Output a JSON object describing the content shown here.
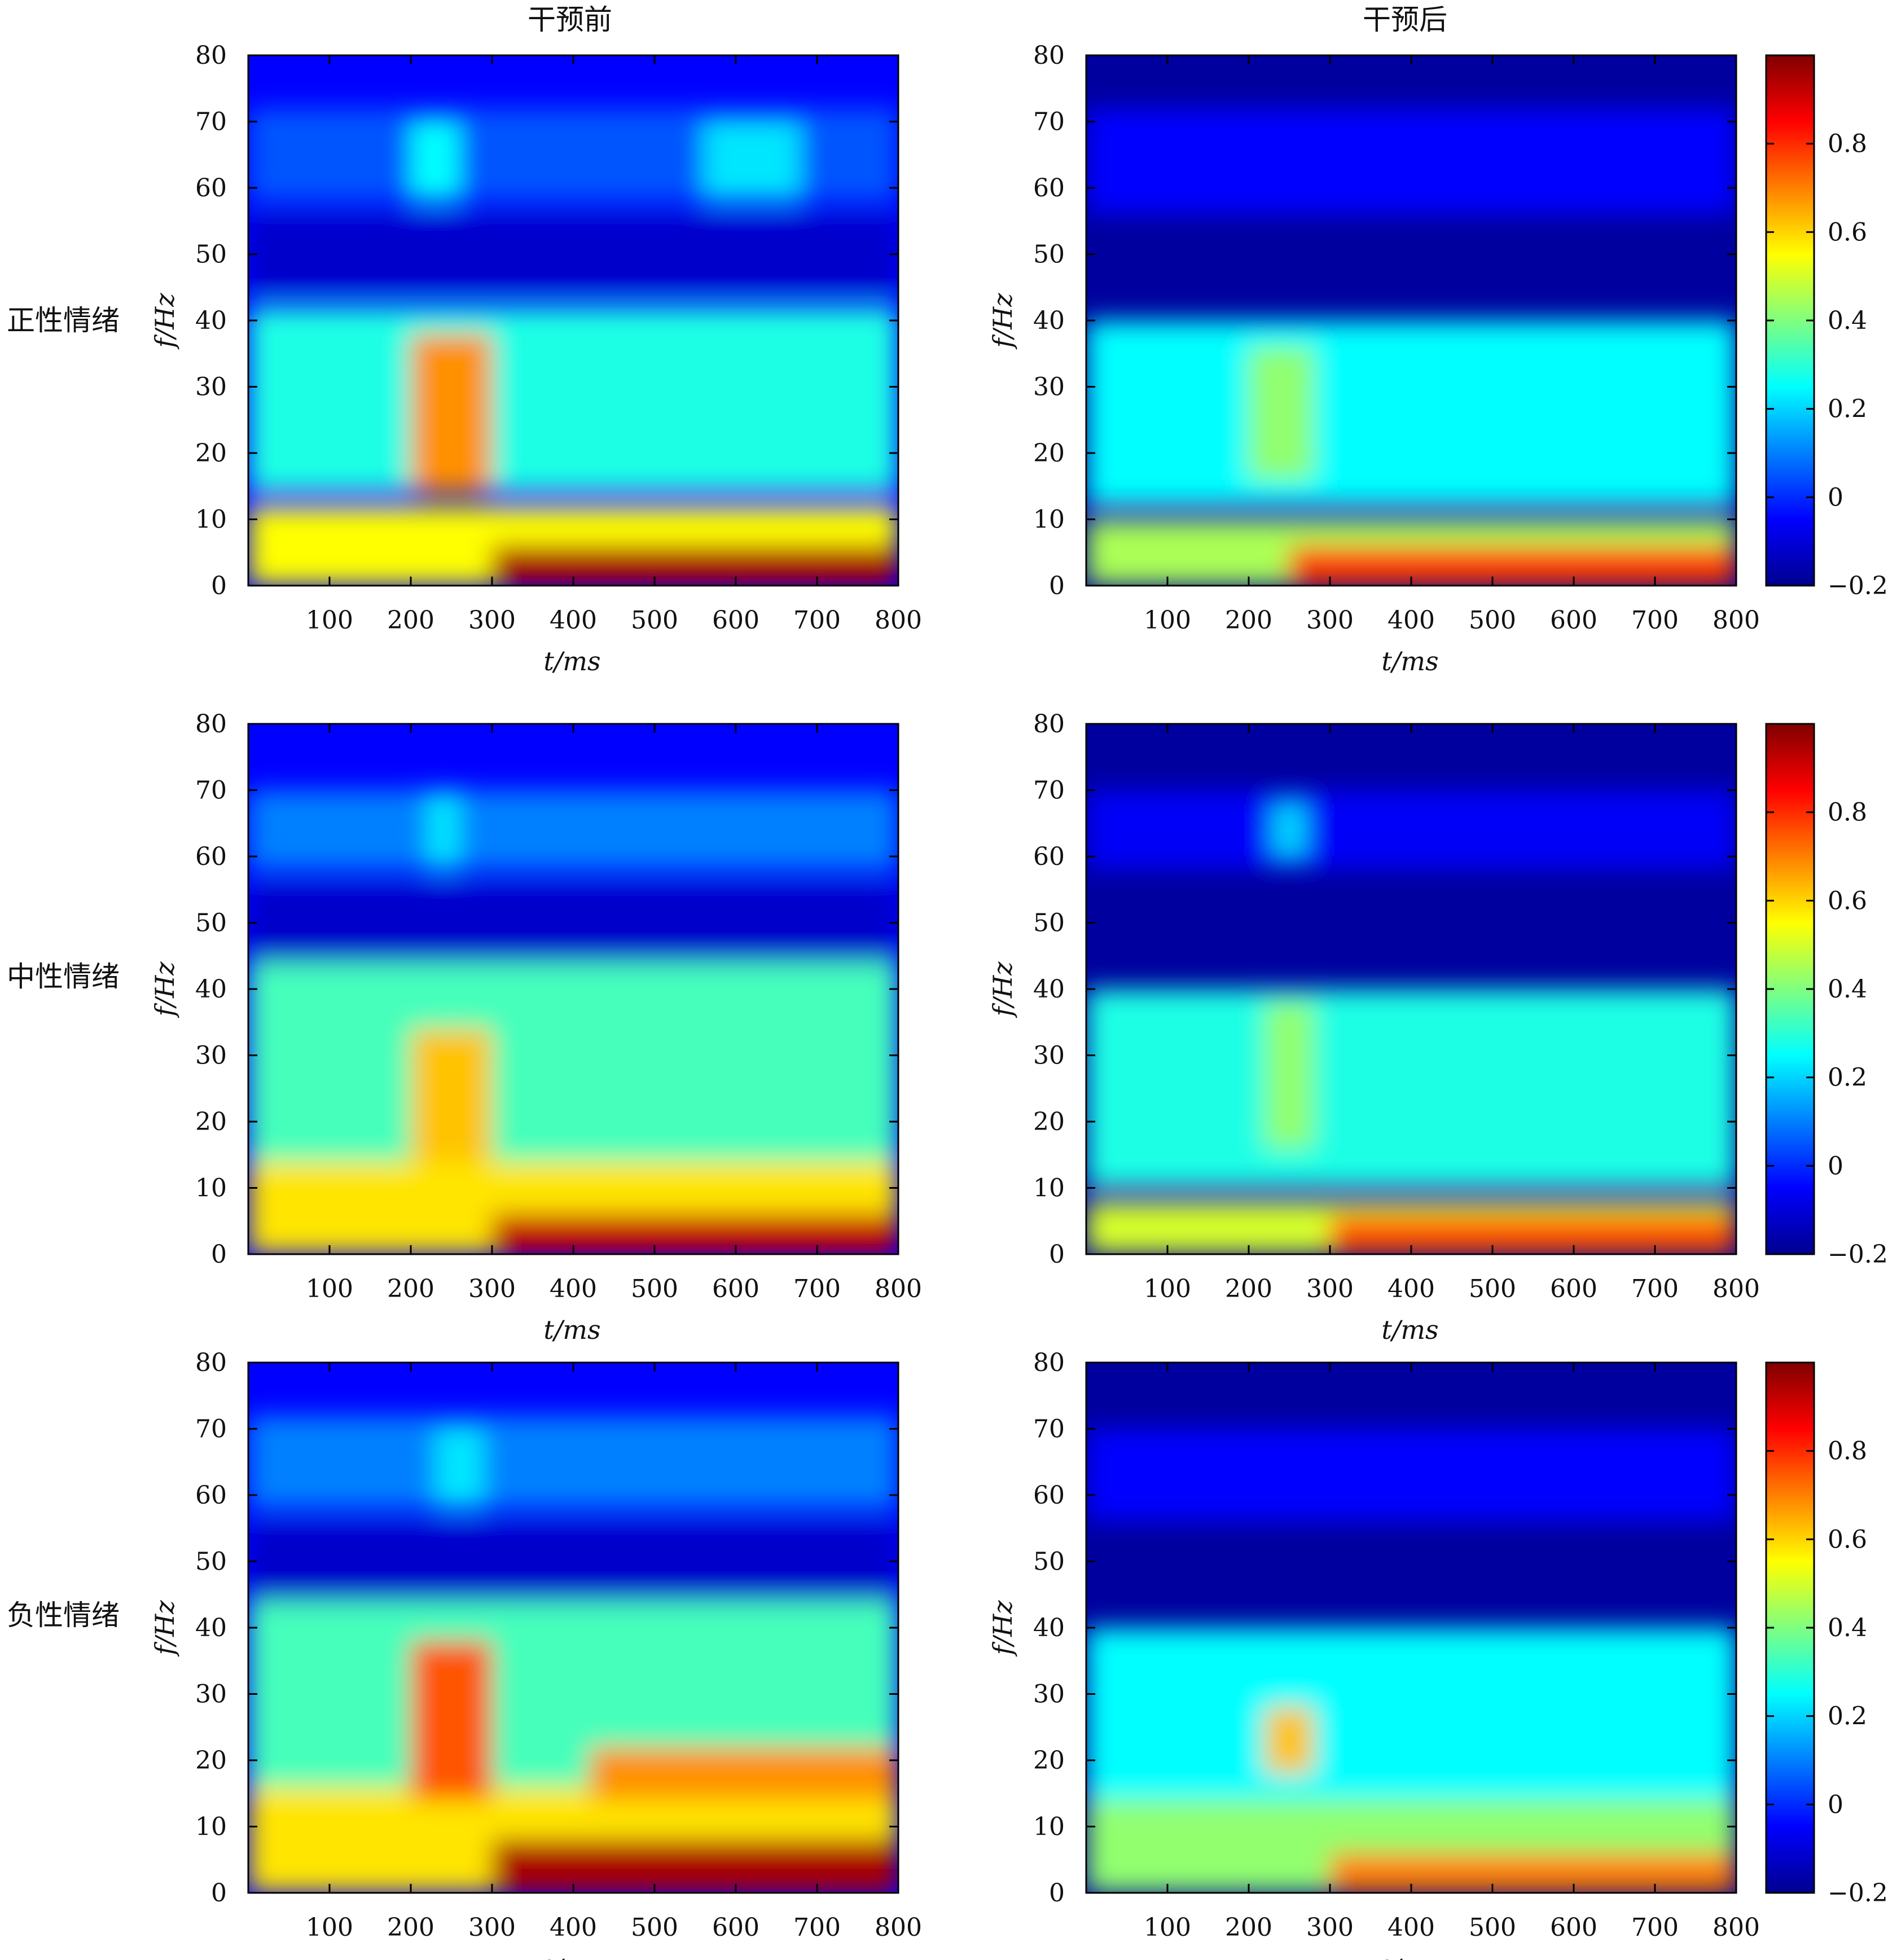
{
  "column_titles": [
    "干预前",
    "干预后"
  ],
  "row_labels": [
    "正性情绪",
    "中性情绪",
    "负性情绪"
  ],
  "chart_data": {
    "type": "heatmap",
    "title": "",
    "xlabel": "t/ms",
    "ylabel": "f/Hz",
    "x_ticks": [
      100,
      200,
      300,
      400,
      500,
      600,
      700,
      800
    ],
    "y_ticks": [
      0,
      10,
      20,
      30,
      40,
      50,
      60,
      70,
      80
    ],
    "xlim": [
      0,
      800
    ],
    "ylim": [
      0,
      80
    ],
    "colorbar": {
      "ticks": [
        -0.2,
        0,
        0.2,
        0.4,
        0.6,
        0.8
      ],
      "tick_labels": [
        "−0.2",
        "0",
        "0.2",
        "0.4",
        "0.6",
        "0.8"
      ],
      "range": [
        -0.2,
        1.0
      ],
      "colormap": "jet",
      "stops": [
        "#00008f",
        "#0000ff",
        "#00ffff",
        "#ffff00",
        "#ff0000",
        "#800000"
      ]
    },
    "panels": [
      {
        "row": "正性情绪",
        "column": "干预前",
        "background": -0.05,
        "regions": [
          {
            "t": [
              0,
              800
            ],
            "f": [
              14,
              42
            ],
            "value": 0.28
          },
          {
            "t": [
              0,
              800
            ],
            "f": [
              44,
              56
            ],
            "value": -0.12
          },
          {
            "t": [
              0,
              800
            ],
            "f": [
              58,
              72
            ],
            "value": 0.05
          },
          {
            "t": [
              0,
              800
            ],
            "f": [
              0,
              12
            ],
            "value": 0.55
          },
          {
            "t": [
              300,
              800
            ],
            "f": [
              0,
              6
            ],
            "value": 0.95
          },
          {
            "t": [
              200,
              300
            ],
            "f": [
              14,
              38
            ],
            "value": 0.68
          },
          {
            "t": [
              200,
              260
            ],
            "f": [
              58,
              70
            ],
            "value": 0.25
          },
          {
            "t": [
              560,
              680
            ],
            "f": [
              58,
              70
            ],
            "value": 0.22
          }
        ]
      },
      {
        "row": "正性情绪",
        "column": "干预后",
        "background": -0.18,
        "regions": [
          {
            "t": [
              0,
              800
            ],
            "f": [
              12,
              40
            ],
            "value": 0.25
          },
          {
            "t": [
              0,
              800
            ],
            "f": [
              56,
              72
            ],
            "value": -0.05
          },
          {
            "t": [
              0,
              800
            ],
            "f": [
              0,
              10
            ],
            "value": 0.45
          },
          {
            "t": [
              250,
              800
            ],
            "f": [
              0,
              6
            ],
            "value": 0.78
          },
          {
            "t": [
              200,
              280
            ],
            "f": [
              16,
              36
            ],
            "value": 0.42
          }
        ]
      },
      {
        "row": "中性情绪",
        "column": "干预前",
        "background": -0.05,
        "regions": [
          {
            "t": [
              0,
              800
            ],
            "f": [
              14,
              44
            ],
            "value": 0.33
          },
          {
            "t": [
              0,
              800
            ],
            "f": [
              44,
              56
            ],
            "value": -0.12
          },
          {
            "t": [
              0,
              800
            ],
            "f": [
              58,
              70
            ],
            "value": 0.1
          },
          {
            "t": [
              0,
              800
            ],
            "f": [
              0,
              14
            ],
            "value": 0.58
          },
          {
            "t": [
              300,
              800
            ],
            "f": [
              0,
              6
            ],
            "value": 0.92
          },
          {
            "t": [
              200,
              300
            ],
            "f": [
              14,
              34
            ],
            "value": 0.62
          },
          {
            "t": [
              220,
              260
            ],
            "f": [
              58,
              70
            ],
            "value": 0.22
          }
        ]
      },
      {
        "row": "中性情绪",
        "column": "干预后",
        "background": -0.18,
        "regions": [
          {
            "t": [
              0,
              800
            ],
            "f": [
              10,
              40
            ],
            "value": 0.28
          },
          {
            "t": [
              0,
              800
            ],
            "f": [
              58,
              70
            ],
            "value": -0.06
          },
          {
            "t": [
              0,
              800
            ],
            "f": [
              0,
              8
            ],
            "value": 0.5
          },
          {
            "t": [
              300,
              800
            ],
            "f": [
              0,
              6
            ],
            "value": 0.75
          },
          {
            "t": [
              220,
              280
            ],
            "f": [
              16,
              38
            ],
            "value": 0.42
          },
          {
            "t": [
              230,
              270
            ],
            "f": [
              60,
              68
            ],
            "value": 0.2
          }
        ]
      },
      {
        "row": "负性情绪",
        "column": "干预前",
        "background": -0.05,
        "regions": [
          {
            "t": [
              0,
              800
            ],
            "f": [
              14,
              44
            ],
            "value": 0.33
          },
          {
            "t": [
              0,
              800
            ],
            "f": [
              44,
              56
            ],
            "value": -0.12
          },
          {
            "t": [
              0,
              800
            ],
            "f": [
              58,
              72
            ],
            "value": 0.1
          },
          {
            "t": [
              0,
              800
            ],
            "f": [
              0,
              16
            ],
            "value": 0.58
          },
          {
            "t": [
              300,
              800
            ],
            "f": [
              0,
              8
            ],
            "value": 0.95
          },
          {
            "t": [
              200,
              300
            ],
            "f": [
              14,
              38
            ],
            "value": 0.75
          },
          {
            "t": [
              420,
              800
            ],
            "f": [
              14,
              22
            ],
            "value": 0.68
          },
          {
            "t": [
              230,
              290
            ],
            "f": [
              58,
              70
            ],
            "value": 0.22
          }
        ]
      },
      {
        "row": "负性情绪",
        "column": "干预后",
        "background": -0.18,
        "regions": [
          {
            "t": [
              0,
              800
            ],
            "f": [
              12,
              40
            ],
            "value": 0.25
          },
          {
            "t": [
              0,
              800
            ],
            "f": [
              56,
              70
            ],
            "value": -0.05
          },
          {
            "t": [
              0,
              800
            ],
            "f": [
              0,
              14
            ],
            "value": 0.42
          },
          {
            "t": [
              300,
              800
            ],
            "f": [
              0,
              6
            ],
            "value": 0.7
          },
          {
            "t": [
              220,
              280
            ],
            "f": [
              18,
              28
            ],
            "value": 0.62
          }
        ]
      }
    ]
  }
}
